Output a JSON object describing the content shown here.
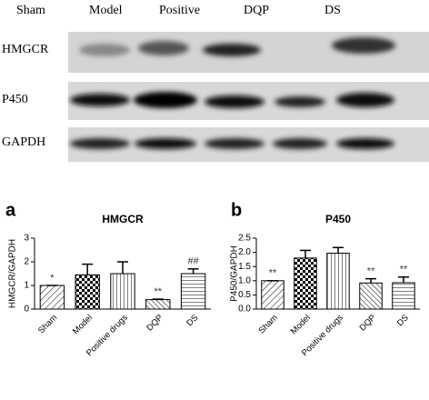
{
  "blot": {
    "lanes": [
      "Sham",
      "Model",
      "Positive",
      "DQP",
      "DS"
    ],
    "rows": [
      "HMGCR",
      "P450",
      "GAPDH"
    ]
  },
  "chart_data": [
    {
      "type": "bar",
      "panel": "a",
      "title": "HMGCR",
      "y_label": "HMGCR/GAPDH",
      "categories": [
        "Sham",
        "Model",
        "Positive drugs",
        "DQP",
        "DS"
      ],
      "values": [
        1.0,
        1.45,
        1.5,
        0.4,
        1.5
      ],
      "errors": [
        0,
        0.45,
        0.5,
        0.02,
        0.2
      ],
      "annotations": [
        "*",
        null,
        null,
        "**",
        "##"
      ],
      "ylim": [
        0,
        3
      ],
      "yticks": [
        0,
        1,
        2,
        3
      ]
    },
    {
      "type": "bar",
      "panel": "b",
      "title": "P450",
      "y_label": "P450/GAPDH",
      "categories": [
        "Sham",
        "Model",
        "Positive drugs",
        "DQP",
        "DS"
      ],
      "values": [
        1.0,
        1.8,
        1.97,
        0.92,
        0.93
      ],
      "errors": [
        0,
        0.27,
        0.2,
        0.15,
        0.2
      ],
      "annotations": [
        "**",
        null,
        null,
        "**",
        "**"
      ],
      "ylim": [
        0,
        2.5
      ],
      "yticks": [
        {
          "value": 0,
          "label": "0.0"
        },
        0.5,
        {
          "value": 1,
          "label": "1.0"
        },
        1.5,
        {
          "value": 2,
          "label": "2.0"
        },
        2.5
      ]
    }
  ]
}
